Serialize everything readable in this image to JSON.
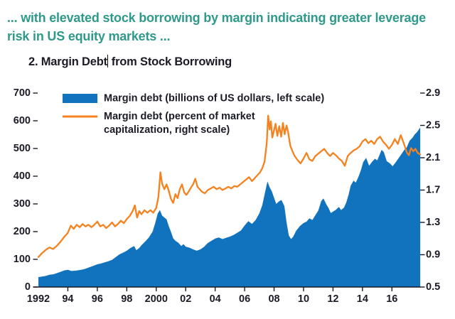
{
  "page": {
    "heading": "... with elevated stock borrowing by margin indicating greater leverage risk in US equity markets ...",
    "chart_title_before_cursor": "2. Margin Debt",
    "chart_title_after_cursor": " from Stock Borrowing"
  },
  "colors": {
    "heading_teal": "#2f998b",
    "text_dark": "#1b1b26",
    "axis": "#1b1b26",
    "blue_area": "#1173bd",
    "orange_line": "#f5821e",
    "cursor": "#111111",
    "background": "#ffffff"
  },
  "chart_data": {
    "type": "area",
    "title": "2. Margin Debt from Stock Borrowing",
    "x_axis": {
      "range": [
        1992.0,
        2017.92
      ],
      "tick_years": [
        1992,
        1994,
        1996,
        1998,
        2000,
        2002,
        2004,
        2006,
        2008,
        2010,
        2012,
        2014,
        2016
      ],
      "tick_labels": [
        "1992",
        "94",
        "96",
        "98",
        "2000",
        "02",
        "04",
        "06",
        "08",
        "10",
        "12",
        "14",
        "16"
      ]
    },
    "left_axis": {
      "range": [
        0,
        700
      ],
      "ticks": [
        0,
        100,
        200,
        300,
        400,
        500,
        600,
        700
      ],
      "tick_labels": [
        "0",
        "100",
        "200",
        "300",
        "400",
        "500",
        "600",
        "700"
      ]
    },
    "right_axis": {
      "range": [
        0.5,
        2.9
      ],
      "ticks": [
        0.5,
        0.9,
        1.3,
        1.7,
        2.1,
        2.5,
        2.9
      ],
      "tick_labels": [
        "0.5",
        "0.9",
        "1.3",
        "1.7",
        "2.1",
        "2.5",
        "2.9"
      ]
    },
    "legend": [
      {
        "swatch": "area",
        "color": "#1173bd",
        "label_lines": [
          "Margin debt (billions of US dollars, left scale)"
        ]
      },
      {
        "swatch": "line",
        "color": "#f5821e",
        "label_lines": [
          "Margin debt (percent of market",
          "capitalization, right scale)"
        ]
      }
    ],
    "series": [
      {
        "name": "Margin debt (billions of US dollars, left scale)",
        "type": "area",
        "axis": "left",
        "color": "#1173bd",
        "x": [
          1992.0,
          1992.25,
          1992.5,
          1992.75,
          1993.0,
          1993.25,
          1993.5,
          1993.75,
          1994.0,
          1994.25,
          1994.5,
          1994.75,
          1995.0,
          1995.25,
          1995.5,
          1995.75,
          1996.0,
          1996.25,
          1996.5,
          1996.75,
          1997.0,
          1997.25,
          1997.5,
          1997.75,
          1998.0,
          1998.25,
          1998.5,
          1998.65,
          1998.85,
          1999.0,
          1999.25,
          1999.5,
          1999.75,
          1999.92,
          2000.1,
          2000.25,
          2000.4,
          2000.55,
          2000.7,
          2000.85,
          2001.0,
          2001.15,
          2001.3,
          2001.5,
          2001.7,
          2001.85,
          2002.0,
          2002.25,
          2002.5,
          2002.75,
          2003.0,
          2003.25,
          2003.5,
          2003.75,
          2004.0,
          2004.25,
          2004.5,
          2004.75,
          2005.0,
          2005.25,
          2005.5,
          2005.75,
          2006.0,
          2006.25,
          2006.5,
          2006.75,
          2007.0,
          2007.2,
          2007.4,
          2007.55,
          2007.7,
          2007.85,
          2008.0,
          2008.15,
          2008.35,
          2008.5,
          2008.7,
          2008.85,
          2009.0,
          2009.15,
          2009.3,
          2009.5,
          2009.75,
          2010.0,
          2010.2,
          2010.4,
          2010.6,
          2010.8,
          2011.0,
          2011.2,
          2011.35,
          2011.55,
          2011.7,
          2011.85,
          2012.0,
          2012.2,
          2012.4,
          2012.55,
          2012.75,
          2012.9,
          2013.05,
          2013.2,
          2013.4,
          2013.55,
          2013.75,
          2013.9,
          2014.05,
          2014.25,
          2014.45,
          2014.65,
          2014.85,
          2015.0,
          2015.15,
          2015.3,
          2015.45,
          2015.65,
          2015.85,
          2016.05,
          2016.25,
          2016.45,
          2016.65,
          2016.85,
          2017.0,
          2017.2,
          2017.4,
          2017.55,
          2017.7,
          2017.92
        ],
        "y": [
          36,
          38,
          40,
          44,
          46,
          50,
          55,
          60,
          62,
          58,
          59,
          61,
          63,
          67,
          72,
          77,
          82,
          85,
          89,
          93,
          98,
          108,
          118,
          124,
          131,
          141,
          148,
          133,
          141,
          151,
          164,
          179,
          200,
          229,
          265,
          278,
          258,
          251,
          244,
          220,
          199,
          176,
          167,
          160,
          148,
          155,
          146,
          142,
          136,
          131,
          136,
          145,
          159,
          167,
          175,
          179,
          173,
          178,
          182,
          188,
          196,
          204,
          222,
          238,
          228,
          242,
          266,
          295,
          345,
          381,
          360,
          345,
          322,
          300,
          310,
          314,
          292,
          233,
          187,
          173,
          182,
          203,
          220,
          231,
          236,
          248,
          242,
          259,
          276,
          310,
          320,
          298,
          285,
          267,
          272,
          279,
          289,
          278,
          287,
          305,
          332,
          366,
          384,
          377,
          401,
          423,
          451,
          466,
          438,
          452,
          463,
          457,
          476,
          495,
          487,
          454,
          447,
          436,
          450,
          465,
          480,
          496,
          503,
          528,
          539,
          551,
          559,
          576
        ]
      },
      {
        "name": "Margin debt (percent of market capitalization, right scale)",
        "type": "line",
        "axis": "right",
        "color": "#f5821e",
        "x": [
          1992.0,
          1992.25,
          1992.5,
          1992.75,
          1993.0,
          1993.25,
          1993.5,
          1993.75,
          1994.0,
          1994.2,
          1994.4,
          1994.6,
          1994.8,
          1995.0,
          1995.2,
          1995.4,
          1995.6,
          1995.8,
          1996.0,
          1996.2,
          1996.4,
          1996.6,
          1996.8,
          1997.0,
          1997.2,
          1997.4,
          1997.6,
          1997.8,
          1998.0,
          1998.2,
          1998.4,
          1998.55,
          1998.7,
          1998.85,
          1999.0,
          1999.2,
          1999.4,
          1999.6,
          1999.8,
          2000.0,
          2000.15,
          2000.28,
          2000.4,
          2000.55,
          2000.7,
          2000.85,
          2001.0,
          2001.15,
          2001.3,
          2001.45,
          2001.6,
          2001.75,
          2001.9,
          2002.05,
          2002.2,
          2002.35,
          2002.5,
          2002.65,
          2002.8,
          2002.95,
          2003.1,
          2003.3,
          2003.5,
          2003.7,
          2003.9,
          2004.1,
          2004.3,
          2004.5,
          2004.7,
          2004.9,
          2005.1,
          2005.3,
          2005.5,
          2005.7,
          2005.9,
          2006.1,
          2006.3,
          2006.5,
          2006.7,
          2006.9,
          2007.05,
          2007.2,
          2007.35,
          2007.5,
          2007.6,
          2007.7,
          2007.78,
          2007.88,
          2008.0,
          2008.1,
          2008.22,
          2008.35,
          2008.48,
          2008.6,
          2008.72,
          2008.85,
          2008.95,
          2009.1,
          2009.25,
          2009.4,
          2009.6,
          2009.8,
          2010.0,
          2010.2,
          2010.4,
          2010.6,
          2010.8,
          2011.0,
          2011.2,
          2011.4,
          2011.6,
          2011.8,
          2012.0,
          2012.2,
          2012.4,
          2012.6,
          2012.8,
          2013.0,
          2013.2,
          2013.4,
          2013.6,
          2013.8,
          2014.0,
          2014.2,
          2014.4,
          2014.6,
          2014.8,
          2015.0,
          2015.2,
          2015.4,
          2015.6,
          2015.8,
          2016.0,
          2016.2,
          2016.4,
          2016.6,
          2016.8,
          2017.0,
          2017.15,
          2017.3,
          2017.45,
          2017.6,
          2017.75,
          2017.92
        ],
        "y": [
          0.87,
          0.92,
          0.96,
          0.99,
          0.97,
          1.01,
          1.06,
          1.12,
          1.17,
          1.26,
          1.22,
          1.27,
          1.24,
          1.28,
          1.25,
          1.27,
          1.24,
          1.27,
          1.31,
          1.25,
          1.27,
          1.23,
          1.26,
          1.3,
          1.25,
          1.28,
          1.32,
          1.29,
          1.34,
          1.38,
          1.44,
          1.51,
          1.36,
          1.44,
          1.4,
          1.45,
          1.42,
          1.45,
          1.42,
          1.48,
          1.62,
          1.92,
          1.78,
          1.71,
          1.77,
          1.69,
          1.59,
          1.54,
          1.65,
          1.6,
          1.71,
          1.77,
          1.67,
          1.64,
          1.68,
          1.73,
          1.77,
          1.84,
          1.74,
          1.71,
          1.68,
          1.66,
          1.7,
          1.72,
          1.74,
          1.71,
          1.73,
          1.7,
          1.72,
          1.74,
          1.72,
          1.75,
          1.74,
          1.77,
          1.8,
          1.83,
          1.86,
          1.81,
          1.85,
          1.89,
          1.92,
          1.97,
          2.05,
          2.28,
          2.62,
          2.45,
          2.55,
          2.35,
          2.44,
          2.52,
          2.37,
          2.49,
          2.36,
          2.53,
          2.39,
          2.5,
          2.42,
          2.25,
          2.18,
          2.12,
          2.07,
          2.03,
          2.09,
          2.16,
          2.08,
          2.06,
          2.12,
          2.15,
          2.18,
          2.21,
          2.16,
          2.12,
          2.16,
          2.13,
          2.09,
          2.06,
          2.0,
          2.12,
          2.16,
          2.19,
          2.21,
          2.24,
          2.3,
          2.33,
          2.28,
          2.31,
          2.27,
          2.33,
          2.36,
          2.3,
          2.26,
          2.21,
          2.26,
          2.33,
          2.27,
          2.38,
          2.28,
          2.17,
          2.13,
          2.22,
          2.18,
          2.21,
          2.16,
          2.14
        ]
      }
    ]
  }
}
